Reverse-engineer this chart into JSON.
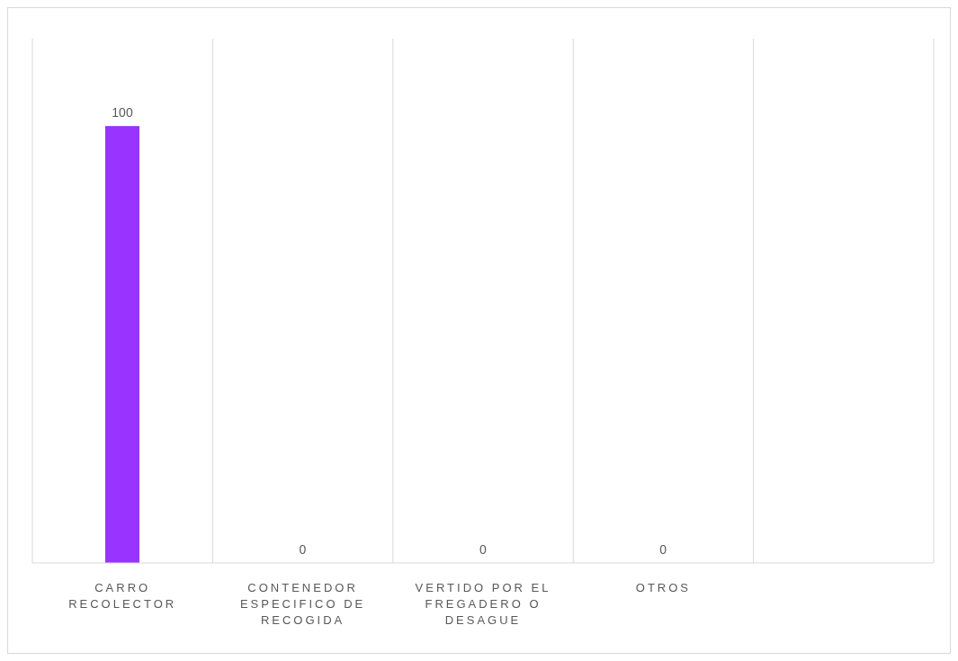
{
  "chart_data": {
    "type": "bar",
    "categories": [
      "CARRO RECOLECTOR",
      "CONTENEDOR ESPECIFICO DE RECOGIDA",
      "VERTIDO POR EL FREGADERO O DESAGUE",
      "OTROS",
      null
    ],
    "values": [
      100,
      0,
      0,
      0,
      null
    ],
    "color": "#9933ff",
    "data_labels": true,
    "grid": "x"
  }
}
